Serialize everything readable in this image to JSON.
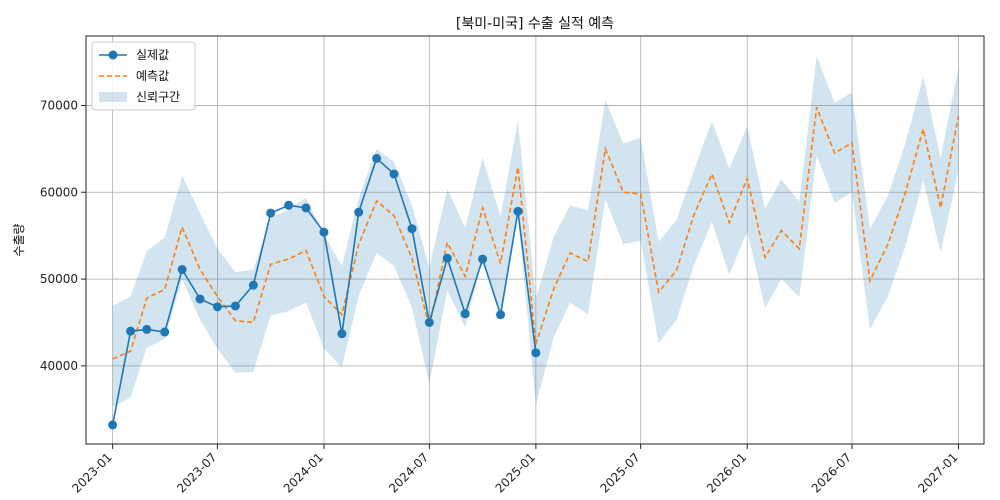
{
  "chart_data": {
    "type": "line",
    "title": "[북미-미국] 수출 실적 예측",
    "xlabel": "",
    "ylabel": "수출량",
    "ylim": [
      31000,
      78000
    ],
    "xlim": [
      "2022-11-16",
      "2027-02-14"
    ],
    "grid": true,
    "legend_position": "top-left",
    "y_ticks": [
      40000,
      50000,
      60000,
      70000
    ],
    "x_ticks": [
      "2023-01",
      "2023-07",
      "2024-01",
      "2024-07",
      "2025-01",
      "2025-07",
      "2026-01",
      "2026-07",
      "2027-01"
    ],
    "colors": {
      "actual": "#1f77b4",
      "forecast": "#ff7f0e",
      "band": "#1f77b4"
    },
    "legend": [
      {
        "key": "actual",
        "label": "실제값"
      },
      {
        "key": "forecast",
        "label": "예측값"
      },
      {
        "key": "band",
        "label": "신뢰구간"
      }
    ],
    "series": [
      {
        "name": "실제값",
        "style": "line-marker",
        "x": [
          "2023-01",
          "2023-02",
          "2023-03",
          "2023-04",
          "2023-05",
          "2023-06",
          "2023-07",
          "2023-08",
          "2023-09",
          "2023-10",
          "2023-11",
          "2023-12",
          "2024-01",
          "2024-02",
          "2024-03",
          "2024-04",
          "2024-05",
          "2024-06",
          "2024-07",
          "2024-08",
          "2024-09",
          "2024-10",
          "2024-11",
          "2024-12",
          "2025-01"
        ],
        "values": [
          33200,
          44000,
          44200,
          43900,
          51100,
          47700,
          46800,
          46900,
          49300,
          57600,
          58500,
          58200,
          55400,
          43700,
          57700,
          63900,
          62100,
          55800,
          45000,
          52400,
          46000,
          52300,
          45900,
          57800,
          41500
        ]
      },
      {
        "name": "예측값",
        "style": "dashed",
        "x": [
          "2023-01",
          "2023-02",
          "2023-03",
          "2023-04",
          "2023-05",
          "2023-06",
          "2023-07",
          "2023-08",
          "2023-09",
          "2023-10",
          "2023-11",
          "2023-12",
          "2024-01",
          "2024-02",
          "2024-03",
          "2024-04",
          "2024-05",
          "2024-06",
          "2024-07",
          "2024-08",
          "2024-09",
          "2024-10",
          "2024-11",
          "2024-12",
          "2025-01",
          "2025-02",
          "2025-03",
          "2025-04",
          "2025-05",
          "2025-06",
          "2025-07",
          "2025-08",
          "2025-09",
          "2025-10",
          "2025-11",
          "2025-12",
          "2026-01",
          "2026-02",
          "2026-03",
          "2026-04",
          "2026-05",
          "2026-06",
          "2026-07",
          "2026-08",
          "2026-09",
          "2026-10",
          "2026-11",
          "2026-12",
          "2027-01"
        ],
        "values": [
          40800,
          41700,
          47800,
          48800,
          56000,
          51100,
          48000,
          45200,
          45000,
          51700,
          52300,
          53300,
          48000,
          45900,
          54000,
          59000,
          57300,
          52400,
          44500,
          54200,
          50300,
          58200,
          51800,
          62900,
          42500,
          48900,
          53000,
          52000,
          65000,
          60000,
          59800,
          48500,
          51000,
          57400,
          62100,
          56500,
          61600,
          52500,
          55600,
          53500,
          69800,
          64500,
          65700,
          49800,
          54000,
          59900,
          67300,
          58200,
          68800
        ]
      },
      {
        "name": "신뢰구간",
        "style": "band",
        "x": [
          "2023-01",
          "2023-02",
          "2023-03",
          "2023-04",
          "2023-05",
          "2023-06",
          "2023-07",
          "2023-08",
          "2023-09",
          "2023-10",
          "2023-11",
          "2023-12",
          "2024-01",
          "2024-02",
          "2024-03",
          "2024-04",
          "2024-05",
          "2024-06",
          "2024-07",
          "2024-08",
          "2024-09",
          "2024-10",
          "2024-11",
          "2024-12",
          "2025-01",
          "2025-02",
          "2025-03",
          "2025-04",
          "2025-05",
          "2025-06",
          "2025-07",
          "2025-08",
          "2025-09",
          "2025-10",
          "2025-11",
          "2025-12",
          "2026-01",
          "2026-02",
          "2026-03",
          "2026-04",
          "2026-05",
          "2026-06",
          "2026-07",
          "2026-08",
          "2026-09",
          "2026-10",
          "2026-11",
          "2026-12",
          "2027-01"
        ],
        "upper": [
          46900,
          48000,
          53200,
          54800,
          61900,
          57600,
          53500,
          50800,
          51100,
          57000,
          58000,
          59400,
          55100,
          51500,
          59300,
          65000,
          63500,
          58500,
          51300,
          60400,
          55900,
          64000,
          57200,
          68300,
          47700,
          54900,
          58500,
          57900,
          70600,
          65600,
          66300,
          54300,
          56800,
          62500,
          68200,
          62700,
          67600,
          58100,
          61500,
          58900,
          75700,
          70300,
          71500,
          55800,
          59600,
          65600,
          73300,
          63900,
          74500
        ],
        "lower": [
          35200,
          36400,
          42100,
          43100,
          50000,
          45300,
          42000,
          39200,
          39300,
          45800,
          46300,
          47300,
          42000,
          39800,
          48100,
          53000,
          51500,
          46700,
          38000,
          48700,
          44400,
          52600,
          46100,
          57300,
          35500,
          43300,
          47300,
          45900,
          59200,
          54000,
          54400,
          42600,
          45300,
          51600,
          56600,
          50500,
          55500,
          46700,
          50000,
          47900,
          64200,
          58800,
          60000,
          44200,
          48000,
          53800,
          61400,
          53100,
          62500
        ]
      }
    ]
  }
}
